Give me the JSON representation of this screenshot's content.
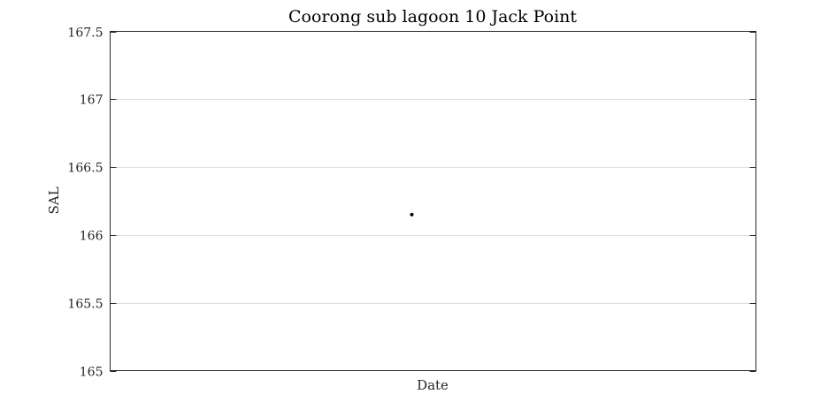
{
  "chart_data": {
    "type": "scatter",
    "title": "Coorong sub lagoon 10 Jack Point",
    "xlabel": "Date",
    "ylabel": "SAL",
    "ylim": [
      165,
      167.5
    ],
    "yticks": [
      165,
      165.5,
      166,
      166.5,
      167,
      167.5
    ],
    "ytick_labels": [
      "165",
      "165.5",
      "166",
      "166.5",
      "167",
      "167.5"
    ],
    "grid": "horizontal",
    "series": [
      {
        "color": "#000000",
        "x_position": "center",
        "values": [
          166.15
        ]
      }
    ]
  }
}
